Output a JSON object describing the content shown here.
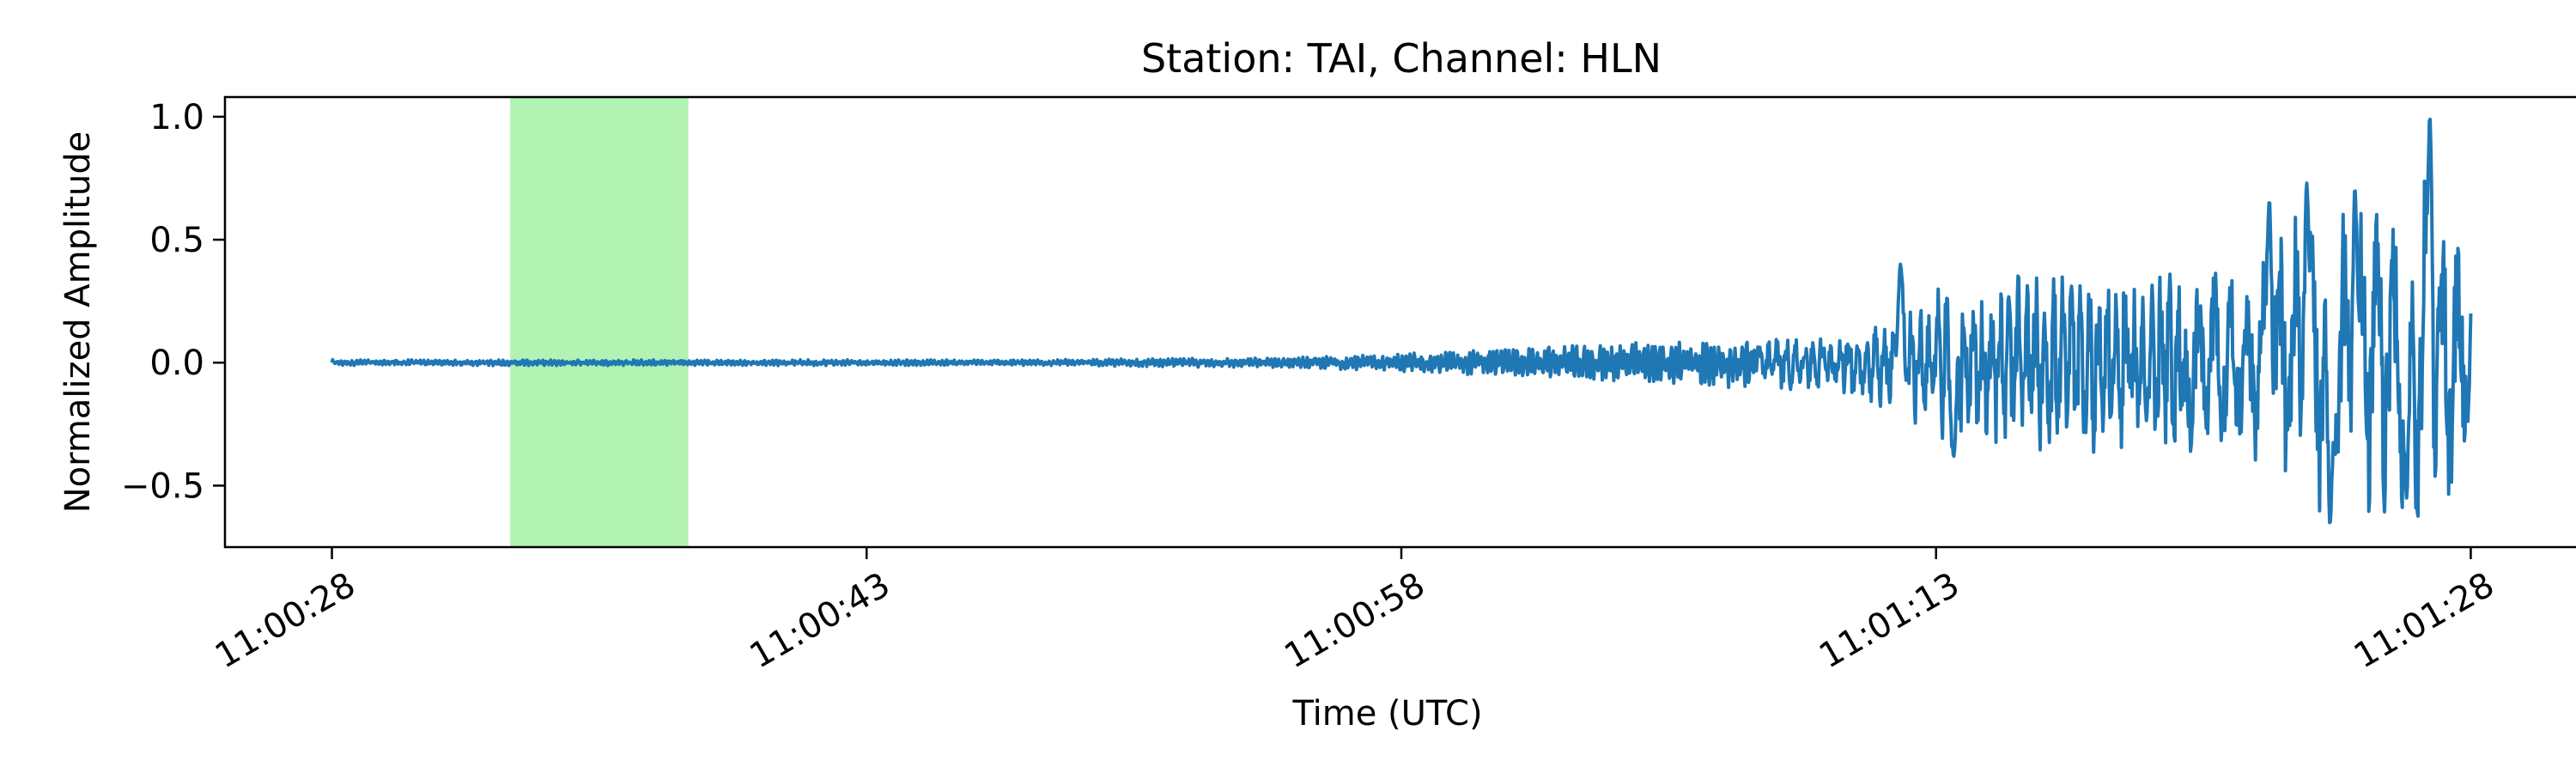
{
  "chart_data": {
    "type": "line",
    "title": "Station: TAI, Channel: HLN",
    "xlabel": "Time (UTC)",
    "ylabel": "Normalized Amplitude",
    "x_tick_labels": [
      "11:00:28",
      "11:00:43",
      "11:00:58",
      "11:01:13",
      "11:01:28"
    ],
    "x_tick_values": [
      0,
      15,
      30,
      45,
      60
    ],
    "xlim": [
      -3,
      63
    ],
    "y_tick_labels": [
      "1.0",
      "0.5",
      "0.0",
      "−0.5"
    ],
    "y_tick_values": [
      1.0,
      0.5,
      0.0,
      -0.5
    ],
    "ylim": [
      -0.75,
      1.08
    ],
    "highlight_span": [
      5.0,
      10.0
    ],
    "highlight_color": "#b2f2b2",
    "line_color": "#1f77b4",
    "grid": false,
    "envelope": [
      {
        "t": 0,
        "a": 0.012
      },
      {
        "t": 20,
        "a": 0.012
      },
      {
        "t": 27,
        "a": 0.022
      },
      {
        "t": 32,
        "a": 0.05
      },
      {
        "t": 35,
        "a": 0.07
      },
      {
        "t": 38,
        "a": 0.1
      },
      {
        "t": 42,
        "a": 0.12
      },
      {
        "t": 44,
        "a": 0.2
      },
      {
        "t": 45,
        "a": 0.33
      },
      {
        "t": 50,
        "a": 0.38
      },
      {
        "t": 54,
        "a": 0.4
      },
      {
        "t": 55,
        "a": 0.62
      },
      {
        "t": 57,
        "a": 0.65
      },
      {
        "t": 59,
        "a": 0.8
      },
      {
        "t": 60,
        "a": 0.32
      }
    ],
    "peaks": [
      {
        "t": 54.35,
        "y": 0.66
      },
      {
        "t": 55.4,
        "y": 0.73
      },
      {
        "t": 56.05,
        "y": -0.66
      },
      {
        "t": 56.75,
        "y": 0.71
      },
      {
        "t": 58.85,
        "y": 1.0
      },
      {
        "t": 58.2,
        "y": -0.55
      },
      {
        "t": 45.5,
        "y": -0.38
      },
      {
        "t": 44.0,
        "y": 0.4
      }
    ]
  }
}
